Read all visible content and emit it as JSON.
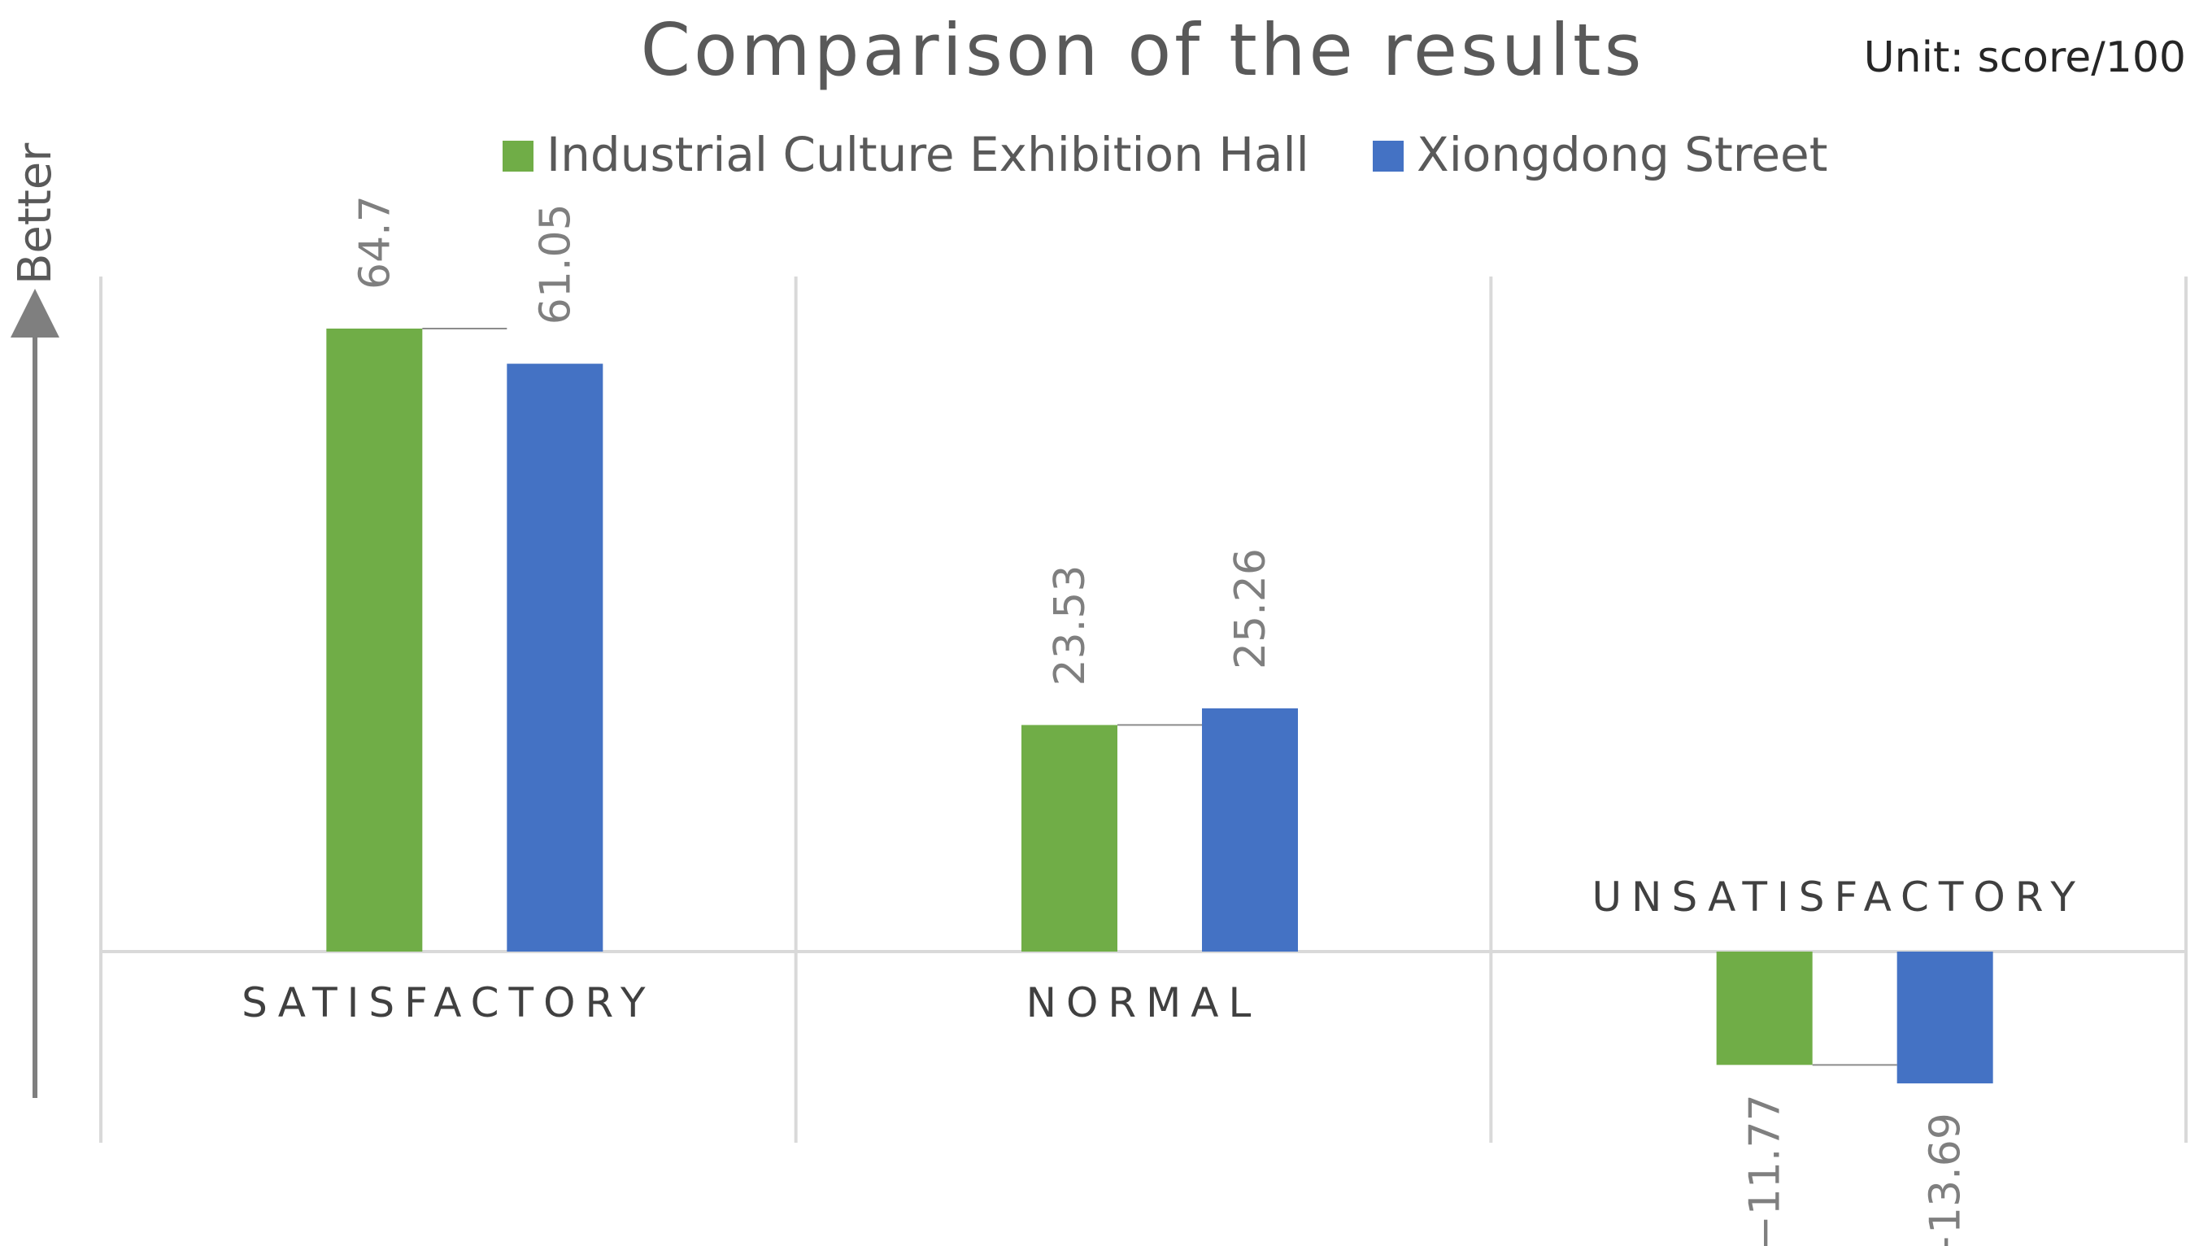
{
  "chart_data": {
    "type": "bar",
    "title": "Comparison of the results",
    "unit": "Unit: score/100",
    "direction_label": "Better",
    "categories": [
      "SATISFACTORY",
      "NORMAL",
      "UNSATISFACTORY"
    ],
    "series": [
      {
        "name": "Industrial Culture Exhibition Hall",
        "color": "#70ad47",
        "values": [
          64.7,
          23.53,
          -11.77
        ],
        "labels": [
          "64.7",
          "23.53",
          "−11.77"
        ]
      },
      {
        "name": "Xiongdong Street",
        "color": "#4472c4",
        "values": [
          61.05,
          25.26,
          -13.69
        ],
        "labels": [
          "61.05",
          "25.26",
          "−13.69"
        ]
      }
    ],
    "ylim": [
      -20,
      70
    ],
    "legend_position": "top",
    "grid": "vertical category separators",
    "colors": {
      "gridline": "#d9d9d9",
      "connector": "#8c8c8c",
      "arrow": "#7f7f7f"
    }
  }
}
